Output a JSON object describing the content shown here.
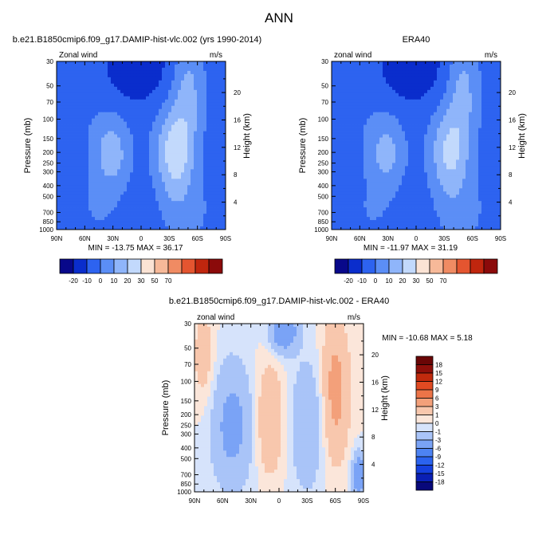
{
  "page": {
    "title": "ANN"
  },
  "chart_data": [
    {
      "type": "heatmap",
      "title": "b.e21.B1850cmip6.f09_g17.DAMIP-hist-vlc.002 (yrs 1990-2014)",
      "left_label": "Zonal wind",
      "right_label": "m/s",
      "xlabel": "",
      "ylabel": "Pressure (mb)",
      "y2label": "Height (km)",
      "x_ticks": [
        "90N",
        "60N",
        "30N",
        "0",
        "30S",
        "60S",
        "90S"
      ],
      "y_ticks": [
        30,
        50,
        70,
        100,
        150,
        200,
        250,
        300,
        400,
        500,
        700,
        850,
        1000
      ],
      "y2_ticks": [
        4,
        8,
        12,
        16,
        20
      ],
      "y_scale": "log",
      "ylim": [
        1000,
        30
      ],
      "stats": "MIN = -13.75  MAX =  36.17",
      "min": -13.75,
      "max": 36.17,
      "levels": [
        -20,
        -10,
        0,
        10,
        20,
        30,
        50,
        70
      ],
      "colorbar": {
        "labels": [
          "-20",
          "-10",
          "0",
          "10",
          "20",
          "30",
          "50",
          "70"
        ],
        "colors": [
          "#08088a",
          "#0a2dcc",
          "#2d63f0",
          "#5b8ef6",
          "#8fb5fa",
          "#c2d9fc",
          "#fbe3d4",
          "#f7b999",
          "#f08b63",
          "#e45530",
          "#c0260e",
          "#8b0a0a"
        ],
        "orientation": "horizontal"
      }
    },
    {
      "type": "heatmap",
      "title": "ERA40",
      "left_label": "zonal wind",
      "right_label": "m/s",
      "xlabel": "",
      "ylabel": "Pressure (mb)",
      "y2label": "Height (km)",
      "x_ticks": [
        "90N",
        "60N",
        "30N",
        "0",
        "30S",
        "60S",
        "90S"
      ],
      "y_ticks": [
        30,
        50,
        70,
        100,
        150,
        200,
        250,
        300,
        400,
        500,
        700,
        850,
        1000
      ],
      "y2_ticks": [
        4,
        8,
        12,
        16,
        20
      ],
      "y_scale": "log",
      "ylim": [
        1000,
        30
      ],
      "stats": "MIN = -11.97  MAX =  31.19",
      "min": -11.97,
      "max": 31.19,
      "levels": [
        -20,
        -10,
        0,
        10,
        20,
        30,
        50,
        70
      ],
      "colorbar": {
        "labels": [
          "-20",
          "-10",
          "0",
          "10",
          "20",
          "30",
          "50",
          "70"
        ],
        "colors": [
          "#08088a",
          "#0a2dcc",
          "#2d63f0",
          "#5b8ef6",
          "#8fb5fa",
          "#c2d9fc",
          "#fbe3d4",
          "#f7b999",
          "#f08b63",
          "#e45530",
          "#c0260e",
          "#8b0a0a"
        ],
        "orientation": "horizontal"
      }
    },
    {
      "type": "heatmap",
      "title": "b.e21.B1850cmip6.f09_g17.DAMIP-hist-vlc.002 - ERA40",
      "left_label": "zonal wind",
      "right_label": "m/s",
      "xlabel": "",
      "ylabel": "Pressure (mb)",
      "y2label": "Height (km)",
      "x_ticks": [
        "90N",
        "60N",
        "30N",
        "0",
        "30S",
        "60S",
        "90S"
      ],
      "y_ticks": [
        30,
        50,
        70,
        100,
        150,
        200,
        250,
        300,
        400,
        500,
        700,
        850,
        1000
      ],
      "y2_ticks": [
        4,
        8,
        12,
        16,
        20
      ],
      "y_scale": "log",
      "ylim": [
        1000,
        30
      ],
      "stats": "MIN = -10.68  MAX =   5.18",
      "min": -10.68,
      "max": 5.18,
      "levels": [
        -18,
        -15,
        -12,
        -9,
        -6,
        -3,
        -1,
        0,
        1,
        3,
        6,
        9,
        12,
        15,
        18
      ],
      "colorbar": {
        "labels": [
          "-18",
          "-15",
          "-12",
          "-9",
          "-6",
          "-3",
          "-1",
          "0",
          "1",
          "3",
          "6",
          "9",
          "12",
          "15",
          "18"
        ],
        "colors": [
          "#08087a",
          "#0a1fb4",
          "#1540de",
          "#2b63ef",
          "#4d83f3",
          "#7aa3f6",
          "#a9c4f8",
          "#d6e3fb",
          "#fbe6da",
          "#f8c7ad",
          "#f3a07a",
          "#ec7448",
          "#e04a22",
          "#c02a0d",
          "#8e0f0a",
          "#6a0606"
        ],
        "orientation": "vertical"
      }
    }
  ]
}
